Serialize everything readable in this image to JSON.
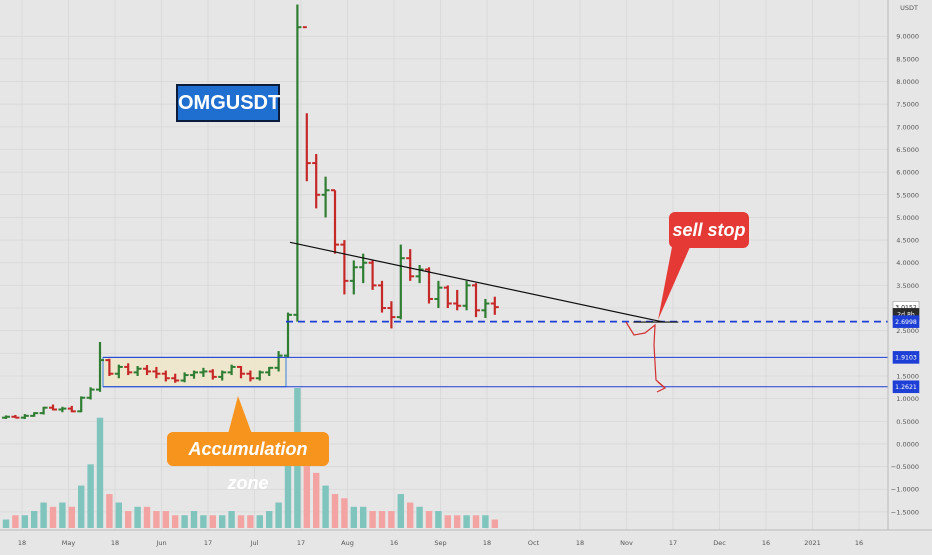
{
  "chart_data": {
    "type": "ohlc",
    "symbol": "OMGUSDT",
    "currency": "USDT",
    "y_axis": {
      "range": [
        -1.9,
        9.8
      ],
      "ticks": [
        "9.0000",
        "8.5000",
        "8.0000",
        "7.5000",
        "7.0000",
        "6.5000",
        "6.0000",
        "5.5000",
        "5.0000",
        "4.5000",
        "4.0000",
        "3.5000",
        "3.0000",
        "2.5000",
        "2.0000",
        "1.5000",
        "1.0000",
        "0.5000",
        "0.0000",
        "−0.5000",
        "−1.0000",
        "−1.5000"
      ],
      "tick_values": [
        9,
        8.5,
        8,
        7.5,
        7,
        6.5,
        6,
        5.5,
        5,
        4.5,
        4,
        3.5,
        3,
        2.5,
        2,
        1.5,
        1,
        0.5,
        0,
        -0.5,
        -1,
        -1.5
      ]
    },
    "x_axis": {
      "labels": [
        "18",
        "May",
        "18",
        "Jun",
        "17",
        "Jul",
        "17",
        "Aug",
        "16",
        "Sep",
        "18",
        "Oct",
        "18",
        "Nov",
        "17",
        "Dec",
        "16",
        "2021",
        "16"
      ]
    },
    "price_tags": [
      {
        "label": "3.0152",
        "value": 3.0152,
        "style": "white"
      },
      {
        "label": "2d 8h",
        "value": 2.86,
        "style": "dark"
      },
      {
        "label": "2.6998",
        "value": 2.6998,
        "style": "blue"
      },
      {
        "label": "1.9103",
        "value": 1.9103,
        "style": "blue"
      },
      {
        "label": "1.2621",
        "value": 1.2621,
        "style": "blue"
      }
    ],
    "levels": [
      {
        "name": "breakdown-level",
        "value": 2.6998,
        "style": "dashed"
      },
      {
        "name": "range-high",
        "value": 1.9103,
        "style": "solid"
      },
      {
        "name": "range-low",
        "value": 1.2621,
        "style": "solid"
      }
    ],
    "accumulation_zone": {
      "top": 1.9103,
      "bottom": 1.2621
    },
    "trendline": {
      "start": [
        30,
        4.45
      ],
      "end": [
        46,
        2.69
      ]
    },
    "bars": [
      [
        0,
        0.58,
        0.63,
        0.55,
        0.6
      ],
      [
        1,
        0.6,
        0.64,
        0.57,
        0.58
      ],
      [
        2,
        0.58,
        0.66,
        0.55,
        0.62
      ],
      [
        3,
        0.62,
        0.7,
        0.6,
        0.68
      ],
      [
        4,
        0.68,
        0.82,
        0.65,
        0.8
      ],
      [
        5,
        0.8,
        0.87,
        0.74,
        0.76
      ],
      [
        6,
        0.76,
        0.82,
        0.7,
        0.78
      ],
      [
        7,
        0.78,
        0.84,
        0.7,
        0.72
      ],
      [
        8,
        0.72,
        1.05,
        0.7,
        1.02
      ],
      [
        9,
        1.02,
        1.25,
        0.98,
        1.2
      ],
      [
        10,
        1.2,
        2.25,
        1.15,
        1.85
      ],
      [
        11,
        1.85,
        1.88,
        1.5,
        1.55
      ],
      [
        12,
        1.55,
        1.75,
        1.45,
        1.7
      ],
      [
        13,
        1.7,
        1.78,
        1.52,
        1.58
      ],
      [
        14,
        1.58,
        1.72,
        1.5,
        1.66
      ],
      [
        15,
        1.66,
        1.74,
        1.52,
        1.6
      ],
      [
        16,
        1.6,
        1.7,
        1.45,
        1.55
      ],
      [
        17,
        1.55,
        1.62,
        1.38,
        1.45
      ],
      [
        18,
        1.45,
        1.55,
        1.35,
        1.4
      ],
      [
        19,
        1.4,
        1.58,
        1.36,
        1.52
      ],
      [
        20,
        1.52,
        1.62,
        1.44,
        1.58
      ],
      [
        21,
        1.58,
        1.68,
        1.48,
        1.6
      ],
      [
        22,
        1.6,
        1.65,
        1.42,
        1.48
      ],
      [
        23,
        1.48,
        1.62,
        1.4,
        1.58
      ],
      [
        24,
        1.58,
        1.75,
        1.52,
        1.7
      ],
      [
        25,
        1.7,
        1.72,
        1.45,
        1.55
      ],
      [
        26,
        1.55,
        1.62,
        1.38,
        1.45
      ],
      [
        27,
        1.45,
        1.62,
        1.4,
        1.58
      ],
      [
        28,
        1.58,
        1.7,
        1.5,
        1.68
      ],
      [
        29,
        1.68,
        2.05,
        1.6,
        1.95
      ],
      [
        30,
        1.95,
        2.9,
        1.9,
        2.85
      ],
      [
        31,
        2.85,
        9.7,
        2.7,
        9.2
      ],
      [
        32,
        9.2,
        7.3,
        5.8,
        6.2
      ],
      [
        33,
        6.2,
        6.4,
        5.2,
        5.5
      ],
      [
        34,
        5.5,
        5.9,
        5.0,
        5.6
      ],
      [
        35,
        5.6,
        5.6,
        4.2,
        4.4
      ],
      [
        36,
        4.4,
        4.5,
        3.3,
        3.6
      ],
      [
        37,
        3.6,
        4.05,
        3.3,
        3.9
      ],
      [
        38,
        3.9,
        4.2,
        3.55,
        4.0
      ],
      [
        39,
        4.0,
        4.05,
        3.4,
        3.5
      ],
      [
        40,
        3.5,
        3.6,
        2.9,
        3.0
      ],
      [
        41,
        3.0,
        3.15,
        2.55,
        2.8
      ],
      [
        42,
        2.8,
        4.4,
        2.75,
        4.1
      ],
      [
        43,
        4.1,
        4.3,
        3.6,
        3.7
      ],
      [
        44,
        3.7,
        3.95,
        3.55,
        3.85
      ],
      [
        45,
        3.85,
        3.9,
        3.1,
        3.2
      ],
      [
        46,
        3.2,
        3.6,
        3.0,
        3.45
      ],
      [
        47,
        3.45,
        3.5,
        3.0,
        3.1
      ],
      [
        48,
        3.1,
        3.4,
        2.95,
        3.05
      ],
      [
        49,
        3.05,
        3.6,
        2.95,
        3.5
      ],
      [
        50,
        3.5,
        3.55,
        2.8,
        2.95
      ],
      [
        51,
        2.95,
        3.2,
        2.78,
        3.1
      ],
      [
        52,
        3.1,
        3.25,
        2.85,
        3.02
      ]
    ],
    "volume": [
      0.02,
      0.03,
      0.03,
      0.04,
      0.06,
      0.05,
      0.06,
      0.05,
      0.1,
      0.15,
      0.26,
      0.08,
      0.06,
      0.04,
      0.05,
      0.05,
      0.04,
      0.04,
      0.03,
      0.03,
      0.04,
      0.03,
      0.03,
      0.03,
      0.04,
      0.03,
      0.03,
      0.03,
      0.04,
      0.06,
      0.18,
      0.33,
      0.17,
      0.13,
      0.1,
      0.08,
      0.07,
      0.05,
      0.05,
      0.04,
      0.04,
      0.04,
      0.08,
      0.06,
      0.05,
      0.04,
      0.04,
      0.03,
      0.03,
      0.03,
      0.03,
      0.03,
      0.02
    ]
  },
  "annotations": {
    "title": "OMGUSDT",
    "accumulation_label": "Accumulation zone",
    "sell_stop_label": "sell stop"
  },
  "colors": {
    "bg": "#e6e6e6",
    "up": "#2e7d32",
    "down": "#c62828",
    "vol_up": "#7fc4bd",
    "vol_down": "#f4a3a3",
    "level_blue": "#1e3fd6",
    "title_bg": "#1f6fd1",
    "accum_bg": "#f7941d",
    "sell_bg": "#e53935",
    "zone_fill": "#f0e6c8"
  }
}
